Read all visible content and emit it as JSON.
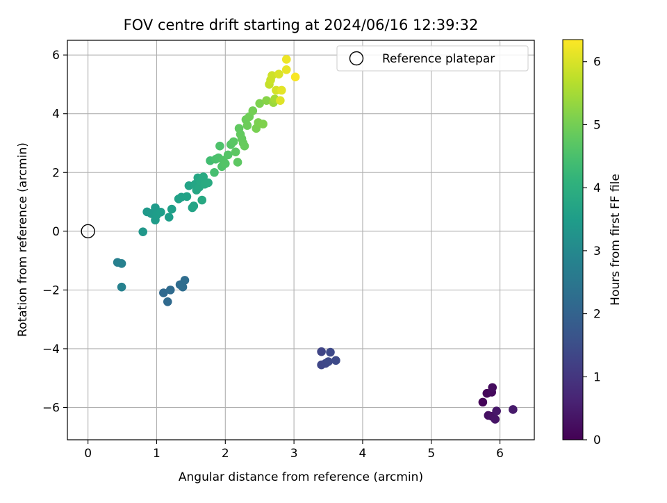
{
  "chart_data": {
    "type": "scatter",
    "title": "FOV centre drift starting at 2024/06/16 12:39:32",
    "xlabel": "Angular distance from reference (arcmin)",
    "ylabel": "Rotation from reference (arcmin)",
    "xlim": [
      -0.3,
      6.5
    ],
    "ylim": [
      -7.1,
      6.5
    ],
    "xticks": [
      0,
      1,
      2,
      3,
      4,
      5,
      6
    ],
    "yticks": [
      -6,
      -4,
      -2,
      0,
      2,
      4,
      6
    ],
    "xtick_labels": [
      "0",
      "1",
      "2",
      "3",
      "4",
      "5",
      "6"
    ],
    "ytick_labels": [
      "−6",
      "−4",
      "−2",
      "0",
      "2",
      "4",
      "6"
    ],
    "grid": true,
    "legend": {
      "position": "top-right",
      "entries": [
        "Reference platepar"
      ]
    },
    "reference_point": {
      "x": 0,
      "y": 0
    },
    "colorbar": {
      "label": "Hours from first FF file",
      "range": [
        0,
        6.35
      ],
      "ticks": [
        0,
        1,
        2,
        3,
        4,
        5,
        6
      ],
      "tick_labels": [
        "0",
        "1",
        "2",
        "3",
        "4",
        "5",
        "6"
      ],
      "colormap": "viridis"
    },
    "points": [
      {
        "x": 5.75,
        "y": -5.82,
        "h": 0.05
      },
      {
        "x": 5.81,
        "y": -5.52,
        "h": 0.1
      },
      {
        "x": 5.88,
        "y": -5.48,
        "h": 0.15
      },
      {
        "x": 5.89,
        "y": -5.32,
        "h": 0.2
      },
      {
        "x": 5.83,
        "y": -6.27,
        "h": 0.25
      },
      {
        "x": 5.88,
        "y": -6.3,
        "h": 0.3
      },
      {
        "x": 5.93,
        "y": -6.4,
        "h": 0.35
      },
      {
        "x": 5.95,
        "y": -6.12,
        "h": 0.4
      },
      {
        "x": 6.19,
        "y": -6.07,
        "h": 0.45
      },
      {
        "x": 3.4,
        "y": -4.1,
        "h": 1.3
      },
      {
        "x": 3.4,
        "y": -4.55,
        "h": 1.32
      },
      {
        "x": 3.46,
        "y": -4.5,
        "h": 1.35
      },
      {
        "x": 3.5,
        "y": -4.44,
        "h": 1.38
      },
      {
        "x": 3.53,
        "y": -4.12,
        "h": 1.4
      },
      {
        "x": 3.61,
        "y": -4.4,
        "h": 1.42
      },
      {
        "x": 1.1,
        "y": -2.1,
        "h": 2.15
      },
      {
        "x": 1.16,
        "y": -2.4,
        "h": 2.18
      },
      {
        "x": 1.2,
        "y": -2.0,
        "h": 2.2
      },
      {
        "x": 1.34,
        "y": -1.82,
        "h": 2.22
      },
      {
        "x": 1.38,
        "y": -1.9,
        "h": 2.24
      },
      {
        "x": 1.41,
        "y": -1.67,
        "h": 2.26
      },
      {
        "x": 0.43,
        "y": -1.06,
        "h": 2.75
      },
      {
        "x": 0.49,
        "y": -1.1,
        "h": 2.78
      },
      {
        "x": 0.49,
        "y": -1.9,
        "h": 2.8
      },
      {
        "x": 0.8,
        "y": -0.02,
        "h": 3.35
      },
      {
        "x": 0.86,
        "y": 0.66,
        "h": 3.4
      },
      {
        "x": 0.92,
        "y": 0.6,
        "h": 3.42
      },
      {
        "x": 0.98,
        "y": 0.8,
        "h": 3.45
      },
      {
        "x": 0.98,
        "y": 0.38,
        "h": 3.47
      },
      {
        "x": 1.0,
        "y": 0.55,
        "h": 3.5
      },
      {
        "x": 1.06,
        "y": 0.65,
        "h": 3.52
      },
      {
        "x": 1.18,
        "y": 0.48,
        "h": 3.54
      },
      {
        "x": 1.22,
        "y": 0.75,
        "h": 3.56
      },
      {
        "x": 1.32,
        "y": 1.1,
        "h": 3.6
      },
      {
        "x": 1.36,
        "y": 1.16,
        "h": 3.62
      },
      {
        "x": 1.44,
        "y": 1.18,
        "h": 3.64
      },
      {
        "x": 1.47,
        "y": 1.55,
        "h": 3.66
      },
      {
        "x": 1.52,
        "y": 0.8,
        "h": 3.68
      },
      {
        "x": 1.54,
        "y": 0.86,
        "h": 3.7
      },
      {
        "x": 1.56,
        "y": 1.6,
        "h": 3.72
      },
      {
        "x": 1.58,
        "y": 1.4,
        "h": 3.74
      },
      {
        "x": 1.6,
        "y": 1.82,
        "h": 3.76
      },
      {
        "x": 1.62,
        "y": 1.5,
        "h": 3.78
      },
      {
        "x": 1.64,
        "y": 1.7,
        "h": 3.8
      },
      {
        "x": 1.66,
        "y": 1.06,
        "h": 3.82
      },
      {
        "x": 1.68,
        "y": 1.85,
        "h": 3.84
      },
      {
        "x": 1.7,
        "y": 1.6,
        "h": 3.86
      },
      {
        "x": 1.75,
        "y": 1.65,
        "h": 3.88
      },
      {
        "x": 1.78,
        "y": 2.4,
        "h": 4.4
      },
      {
        "x": 1.84,
        "y": 2.0,
        "h": 4.45
      },
      {
        "x": 1.86,
        "y": 2.45,
        "h": 4.5
      },
      {
        "x": 1.9,
        "y": 2.5,
        "h": 4.52
      },
      {
        "x": 1.92,
        "y": 2.9,
        "h": 4.55
      },
      {
        "x": 1.95,
        "y": 2.2,
        "h": 4.58
      },
      {
        "x": 1.97,
        "y": 2.42,
        "h": 4.6
      },
      {
        "x": 2.0,
        "y": 2.3,
        "h": 4.62
      },
      {
        "x": 2.04,
        "y": 2.6,
        "h": 4.64
      },
      {
        "x": 2.08,
        "y": 2.95,
        "h": 4.66
      },
      {
        "x": 2.12,
        "y": 3.05,
        "h": 4.7
      },
      {
        "x": 2.15,
        "y": 2.7,
        "h": 4.72
      },
      {
        "x": 2.18,
        "y": 2.35,
        "h": 4.74
      },
      {
        "x": 2.2,
        "y": 3.5,
        "h": 4.78
      },
      {
        "x": 2.22,
        "y": 3.3,
        "h": 4.8
      },
      {
        "x": 2.24,
        "y": 3.15,
        "h": 4.82
      },
      {
        "x": 2.26,
        "y": 3.0,
        "h": 4.84
      },
      {
        "x": 2.28,
        "y": 2.9,
        "h": 4.86
      },
      {
        "x": 2.3,
        "y": 3.8,
        "h": 4.9
      },
      {
        "x": 2.32,
        "y": 3.6,
        "h": 4.92
      },
      {
        "x": 2.35,
        "y": 3.9,
        "h": 4.95
      },
      {
        "x": 2.4,
        "y": 4.1,
        "h": 5.0
      },
      {
        "x": 2.45,
        "y": 3.5,
        "h": 5.05
      },
      {
        "x": 2.48,
        "y": 3.7,
        "h": 5.08
      },
      {
        "x": 2.5,
        "y": 4.35,
        "h": 5.1
      },
      {
        "x": 2.55,
        "y": 3.65,
        "h": 5.12
      },
      {
        "x": 2.6,
        "y": 4.45,
        "h": 5.2
      },
      {
        "x": 2.64,
        "y": 5.0,
        "h": 5.8
      },
      {
        "x": 2.66,
        "y": 5.15,
        "h": 5.85
      },
      {
        "x": 2.68,
        "y": 5.3,
        "h": 5.9
      },
      {
        "x": 2.7,
        "y": 4.38,
        "h": 5.4
      },
      {
        "x": 2.72,
        "y": 4.5,
        "h": 5.5
      },
      {
        "x": 2.74,
        "y": 4.8,
        "h": 5.95
      },
      {
        "x": 2.78,
        "y": 5.35,
        "h": 6.0
      },
      {
        "x": 2.8,
        "y": 4.45,
        "h": 6.05
      },
      {
        "x": 2.82,
        "y": 4.8,
        "h": 6.1
      },
      {
        "x": 2.89,
        "y": 5.5,
        "h": 6.15
      },
      {
        "x": 2.89,
        "y": 5.85,
        "h": 6.2
      },
      {
        "x": 3.02,
        "y": 5.25,
        "h": 6.3
      }
    ]
  }
}
